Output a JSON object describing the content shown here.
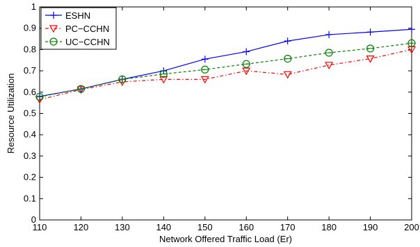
{
  "chart_data": {
    "type": "line",
    "xlabel": "Network Offered Traffic Load (Er)",
    "ylabel": "Resource Utilization",
    "xlim": [
      110,
      200
    ],
    "ylim": [
      0,
      1
    ],
    "xticks": [
      110,
      120,
      130,
      140,
      150,
      160,
      170,
      180,
      190,
      200
    ],
    "yticks": [
      0,
      0.1,
      0.2,
      0.3,
      0.4,
      0.5,
      0.6,
      0.7,
      0.8,
      0.9,
      1
    ],
    "ytick_labels": [
      "0",
      "0.1",
      "0.2",
      "0.3",
      "0.4",
      "0.5",
      "0.6",
      "0.7",
      "0.8",
      "0.9",
      "1"
    ],
    "grid": false,
    "legend_position": "top-left",
    "x": [
      110,
      120,
      130,
      140,
      150,
      160,
      170,
      180,
      190,
      200
    ],
    "series": [
      {
        "name": "ESHN",
        "color": "#0000ff",
        "marker": "plus",
        "line_style": "solid",
        "values": [
          0.58,
          0.615,
          0.66,
          0.7,
          0.755,
          0.79,
          0.84,
          0.87,
          0.882,
          0.895
        ]
      },
      {
        "name": "PC−CCHN",
        "color": "#ff0000",
        "marker": "triangle-down",
        "line_style": "dashdot",
        "values": [
          0.565,
          0.612,
          0.648,
          0.66,
          0.66,
          0.7,
          0.683,
          0.727,
          0.757,
          0.8
        ]
      },
      {
        "name": "UC−CCHN",
        "color": "#007f00",
        "marker": "circle",
        "line_style": "dashed",
        "values": [
          0.578,
          0.615,
          0.66,
          0.685,
          0.706,
          0.732,
          0.757,
          0.785,
          0.805,
          0.83
        ]
      }
    ]
  }
}
